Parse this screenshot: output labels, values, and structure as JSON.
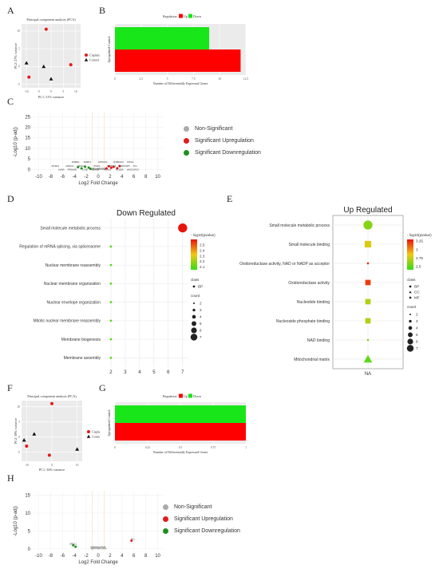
{
  "panel_labels": {
    "a": "A",
    "b": "B",
    "c": "C",
    "d": "D",
    "e": "E",
    "f": "F",
    "g": "G",
    "h": "H"
  },
  "colors": {
    "up": "#e41a1c",
    "down": "#1f8f1f",
    "ns": "#aaaaaa",
    "bar_red": "#ff0000",
    "bar_green": "#19e619",
    "threshold": "#f0b860"
  },
  "chart_data": [
    {
      "id": "A",
      "type": "scatter",
      "title": "Principal component analysis (PCA)",
      "xlabel": "PC1: 51% variance",
      "ylabel": "PC2: 27% variance",
      "xlim": [
        -12,
        12
      ],
      "ylim": [
        -6,
        12
      ],
      "xticks": [
        -10,
        -5,
        0,
        5,
        10
      ],
      "yticks": [
        -5,
        0,
        5,
        10
      ],
      "series": [
        {
          "name": "Cisplatin",
          "marker": "circle",
          "color": "#e41a1c",
          "points": [
            [
              -2,
              10.5
            ],
            [
              -9,
              -3
            ],
            [
              8,
              0.5
            ]
          ]
        },
        {
          "name": "Control",
          "marker": "triangle",
          "color": "#111111",
          "points": [
            [
              -10,
              1
            ],
            [
              -3,
              0
            ],
            [
              0,
              -3.5
            ]
          ]
        }
      ]
    },
    {
      "id": "B",
      "type": "bar",
      "orientation": "horizontal",
      "xlabel": "Number of Differentially Expressed Genes",
      "ylabel": "Upregulated Control",
      "legend_title": "Regulation",
      "legend": [
        "Up",
        "Down"
      ],
      "xlim": [
        0,
        12.5
      ],
      "xticks": [
        0,
        2.5,
        5,
        7.5,
        10,
        12.5
      ],
      "series": [
        {
          "name": "Up",
          "value": 12,
          "color": "#ff0000"
        },
        {
          "name": "Down",
          "value": 9,
          "color": "#19e619"
        }
      ]
    },
    {
      "id": "C",
      "type": "scatter",
      "subtype": "volcano",
      "xlabel": "Log2 Fold Change",
      "ylabel": "-Log10 (p-adj)",
      "xlim": [
        -11,
        11
      ],
      "ylim": [
        -1,
        27
      ],
      "xticks": [
        -10,
        -8,
        -6,
        -4,
        -2,
        0,
        2,
        4,
        6,
        8,
        10
      ],
      "yticks": [
        0,
        5,
        10,
        15,
        20,
        25
      ],
      "legend": [
        "Non-Significant",
        "Significant Upregulation",
        "Significant Downregulation"
      ],
      "genes": [
        {
          "name": "RSBD2",
          "x": -3.8,
          "y": 3.2
        },
        {
          "name": "BHMT1",
          "x": -1.8,
          "y": 3.2
        },
        {
          "name": "HPDOX2",
          "x": 0.8,
          "y": 3.2
        },
        {
          "name": "HNFBGD1",
          "x": 3.4,
          "y": 3.2
        },
        {
          "name": "IGKG1",
          "x": 5.4,
          "y": 3.2
        },
        {
          "name": "RCSD1",
          "x": -7.2,
          "y": 1.2
        },
        {
          "name": "GDDC3",
          "x": -4.8,
          "y": 1.2
        },
        {
          "name": "NDGL1",
          "x": -2.8,
          "y": 1.2
        },
        {
          "name": "PHIK1",
          "x": -0.2,
          "y": 1.2
        },
        {
          "name": "CITRDL5",
          "x": 2.2,
          "y": 1.2
        },
        {
          "name": "MAPKDPS",
          "x": 4.4,
          "y": 1.2
        },
        {
          "name": "TK1",
          "x": 6.2,
          "y": 1.2
        },
        {
          "name": "LMNA",
          "x": -6.2,
          "y": -0.5
        },
        {
          "name": "RPS6KB",
          "x": -4.4,
          "y": -0.5
        },
        {
          "name": "LY6E",
          "x": -2.2,
          "y": -0.5
        },
        {
          "name": "ELKE3",
          "x": -0.4,
          "y": -0.5
        },
        {
          "name": "PLBX1",
          "x": 1.6,
          "y": -0.5
        },
        {
          "name": "NCBD8",
          "x": 3.6,
          "y": -0.5
        },
        {
          "name": "HNOCHF13",
          "x": 5.8,
          "y": -0.5
        }
      ]
    },
    {
      "id": "D",
      "type": "scatter",
      "subtype": "enrichment-dot",
      "title": "Down Regulated",
      "xlim": [
        1.5,
        7.4
      ],
      "xticks": [
        2,
        3,
        4,
        5,
        6,
        7
      ],
      "terms": [
        "Small molecule metabolic process",
        "Regulation of mRNA splicing, via spliceosome",
        "Nuclear membrane reassembly",
        "Nuclear membrane organization",
        "Nuclear envelope organization",
        "Mitotic nuclear membrane reassembly",
        "Membrane biogenesis",
        "Membrane assembly"
      ],
      "values": [
        7,
        2,
        2,
        2,
        2,
        2,
        2,
        2
      ],
      "counts": [
        7,
        2,
        2,
        2,
        2,
        2,
        2,
        2
      ],
      "pvalue": [
        2.6,
        2.1,
        2.1,
        2.1,
        2.1,
        2.1,
        2.1,
        2.1
      ],
      "colorbar_title": "- log10(pvalue)",
      "colorbar_ticks": [
        2.1,
        2.2,
        2.3,
        2.4,
        2.5
      ],
      "class_title": "class",
      "class_items": [
        "BP"
      ],
      "count_title": "count",
      "count_items": [
        2,
        3,
        4,
        5,
        6,
        7
      ]
    },
    {
      "id": "E",
      "type": "scatter",
      "subtype": "enrichment-dot",
      "title": "Up Regulated",
      "xticks": [
        "NA"
      ],
      "terms": [
        "Small molecule metabolic process",
        "Small molecule binding",
        "Oxidoreductase activity, NAD or NADP as acceptor",
        "Oxidoreductase activity",
        "Nucleotide binding",
        "Nucleoside phosphate binding",
        "NAD binding",
        "Mitochondrial matrix"
      ],
      "classes": [
        "BP",
        "MF",
        "MF",
        "MF",
        "MF",
        "MF",
        "MF",
        "CC"
      ],
      "counts": [
        7,
        6,
        2,
        5,
        5,
        5,
        2,
        6
      ],
      "pvalue": [
        2.6,
        2.8,
        3.25,
        3.2,
        2.7,
        2.7,
        2.6,
        2.5
      ],
      "colorbar_title": "- log10(pvalue)",
      "colorbar_ticks": [
        2.5,
        2.75,
        3.0,
        3.25
      ],
      "class_title": "class",
      "class_items": [
        "BP",
        "CC",
        "MF"
      ],
      "count_title": "count",
      "count_items": [
        2,
        3,
        4,
        5,
        6,
        7
      ]
    },
    {
      "id": "F",
      "type": "scatter",
      "title": "Principal component analysis (PCA)",
      "xlabel": "PC1: 56% variance",
      "ylabel": "PC2: 38% variance",
      "xlim": [
        -12,
        12
      ],
      "ylim": [
        -8,
        12
      ],
      "xticks": [
        -10,
        0,
        10
      ],
      "yticks": [
        -5,
        0,
        5,
        10
      ],
      "series": [
        {
          "name": "Cisplatin",
          "marker": "circle",
          "color": "#e41a1c",
          "points": [
            [
              0,
              11
            ],
            [
              -10,
              -3
            ],
            [
              -1,
              -6
            ]
          ]
        },
        {
          "name": "Control",
          "marker": "triangle",
          "color": "#111111",
          "points": [
            [
              -11,
              -1
            ],
            [
              -7,
              1
            ],
            [
              10,
              -4
            ]
          ]
        }
      ]
    },
    {
      "id": "G",
      "type": "bar",
      "orientation": "horizontal",
      "xlabel": "Number of Differentially Expressed Genes",
      "ylabel": "Upregulated Control",
      "legend_title": "Regulation",
      "legend": [
        "Up",
        "Down"
      ],
      "xlim": [
        0,
        1
      ],
      "xticks": [
        0,
        0.25,
        0.5,
        0.75,
        1
      ],
      "series": [
        {
          "name": "Up",
          "value": 1,
          "color": "#ff0000"
        },
        {
          "name": "Down",
          "value": 1,
          "color": "#19e619"
        }
      ]
    },
    {
      "id": "H",
      "type": "scatter",
      "subtype": "volcano",
      "xlabel": "Log2 Fold Change",
      "ylabel": "-Log10 (p-adj)",
      "xlim": [
        -11,
        11
      ],
      "ylim": [
        -0.5,
        16
      ],
      "xticks": [
        -10,
        -8,
        -6,
        -4,
        -2,
        0,
        2,
        4,
        6,
        8,
        10
      ],
      "yticks": [
        0,
        5,
        10,
        15
      ],
      "legend": [
        "Non-Significant",
        "Significant Upregulation",
        "Significant Downregulation"
      ],
      "genes": [
        {
          "name": "TK1",
          "x": 5.8,
          "y": 2.5
        },
        {
          "name": "DFKL1",
          "x": -4.2,
          "y": 1.2
        }
      ]
    }
  ]
}
